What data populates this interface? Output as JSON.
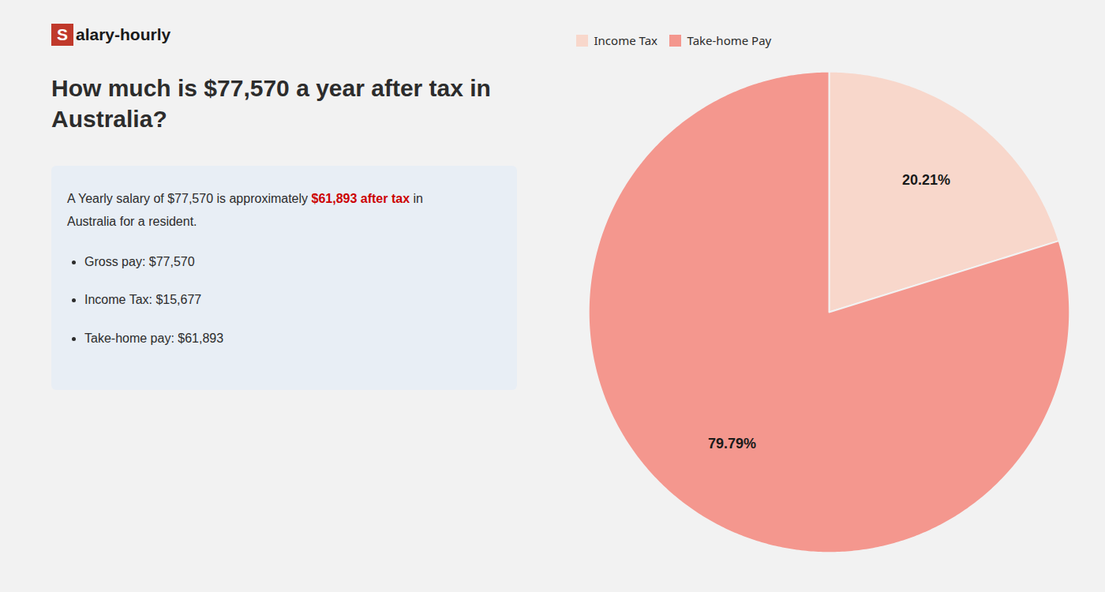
{
  "chart_data": {
    "type": "pie",
    "title": "How much is $77,570 a year after tax in Australia?",
    "logo": {
      "initial": "S",
      "rest": "alary-hourly",
      "color": "#c0392b"
    },
    "body": [
      [
        {
          "text": "A Yearly salary of $77,570 is approximately "
        },
        {
          "text": "$61,893 after tax",
          "color": "#cc0000"
        },
        {
          "text": " in"
        }
      ],
      [
        {
          "text": "Australia for a resident."
        }
      ]
    ],
    "bullets": [
      "Gross pay: $77,570",
      "Income Tax: $15,677",
      "Take-home pay: $61,893"
    ],
    "categories": [
      "Income Tax",
      "Take-home Pay"
    ],
    "values": [
      20.21,
      79.79
    ],
    "value_labels": [
      "20.21%",
      "79.79%"
    ],
    "colors": [
      "#f8d7cb",
      "#f4978e"
    ],
    "data_labels": true,
    "legend": "top"
  }
}
